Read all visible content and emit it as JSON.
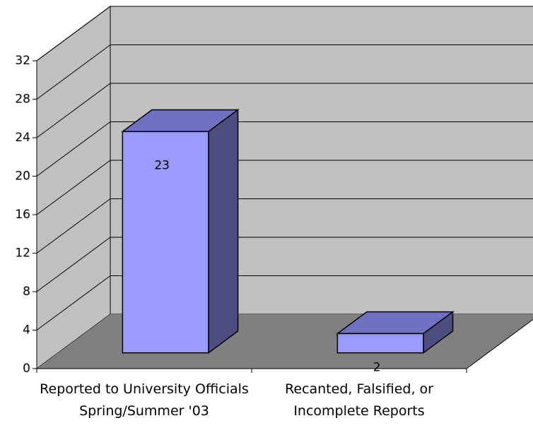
{
  "chart_data": {
    "type": "bar3d",
    "categories": [
      "Reported to University Officials Spring/Summer '03",
      "Recanted, Falsified, or Incomplete Reports"
    ],
    "values": [
      23,
      2
    ],
    "color": "#9999ff",
    "ylim": [
      0,
      32
    ],
    "yticks": [
      0,
      4,
      8,
      12,
      16,
      20,
      24,
      28,
      32
    ],
    "grid": true
  }
}
